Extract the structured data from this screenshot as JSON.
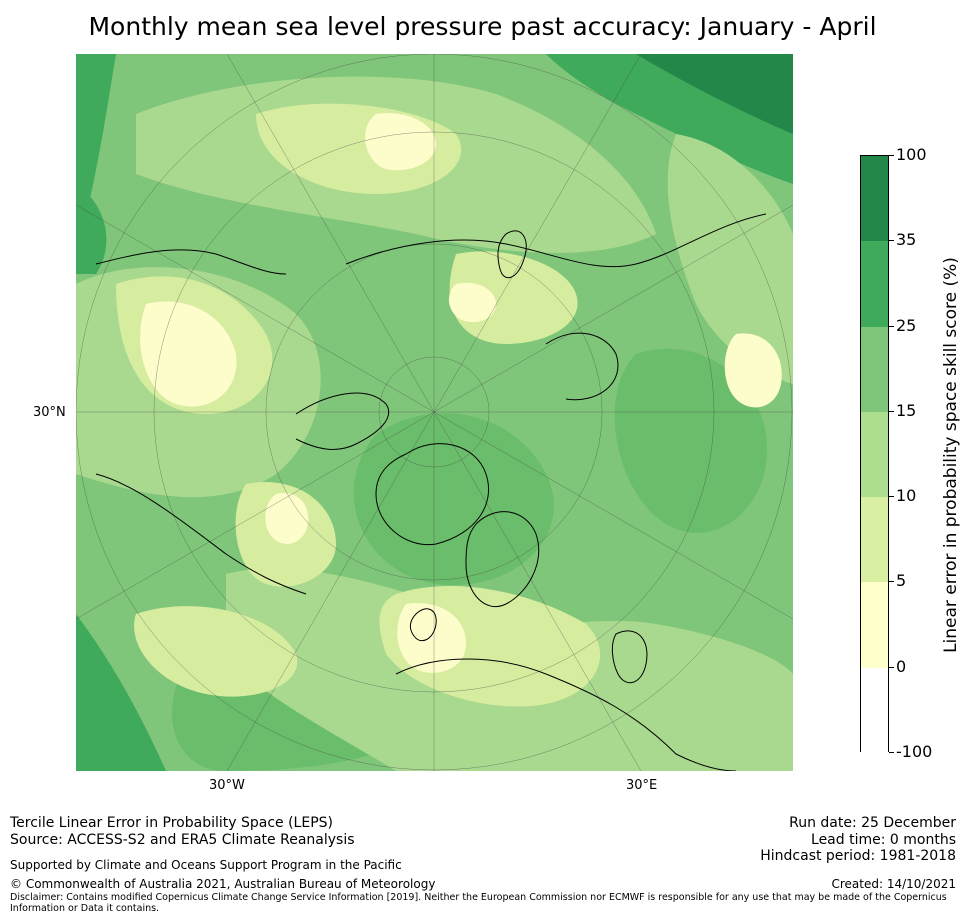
{
  "title": "Monthly mean sea level pressure past accuracy: January - April",
  "map": {
    "projection": "north-polar-stereographic",
    "labels": {
      "lat_30n": "30°N",
      "lon_30w": "30°W",
      "lon_30e": "30°E"
    },
    "colors": {
      "ocean_base": "#7fc67a",
      "land_base": "#a9d98e",
      "pale": "#d6eda0",
      "cream": "#fdfccb",
      "mid": "#6abd6a",
      "dark": "#3fa95c",
      "darkest": "#23874a",
      "coast": "#000000",
      "grid": "#444444"
    }
  },
  "colorbar": {
    "title": "Linear error in probability space skill score (%)",
    "ticks": [
      "100",
      "35",
      "25",
      "15",
      "10",
      "5",
      "0",
      "-100"
    ],
    "colors": [
      "#23874a",
      "#3fa95c",
      "#7fc67a",
      "#addd8e",
      "#d9f0a3",
      "#ffffcc",
      "#ffffff"
    ]
  },
  "footer": {
    "left_line1": "Tercile Linear Error in Probability Space (LEPS)",
    "left_line2": "Source: ACCESS-S2 and ERA5 Climate Reanalysis",
    "support": "Supported by Climate and Oceans Support Program in the Pacific",
    "copyright": "© Commonwealth of Australia 2021, Australian Bureau of Meteorology",
    "run_date": "Run date: 25 December",
    "lead_time": "Lead time: 0 months",
    "hindcast": "Hindcast period: 1981-2018",
    "created": "Created: 14/10/2021",
    "disclaimer": "Disclaimer: Contains modified Copernicus Climate Change Service Information [2019]. Neither the European Commission nor ECMWF is responsible for any use that may be made of the Copernicus Information or Data it contains."
  }
}
